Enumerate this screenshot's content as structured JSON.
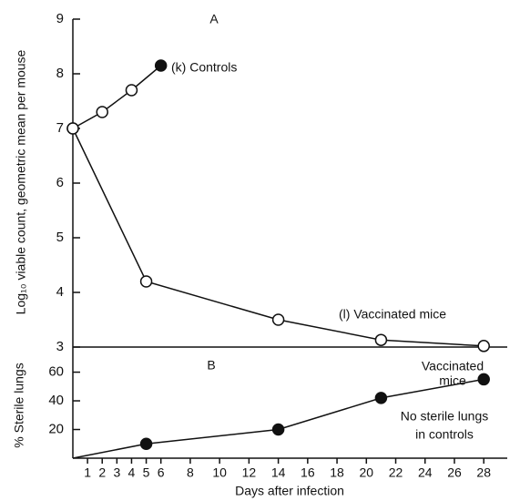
{
  "chart_data": [
    {
      "type": "line",
      "title": "A",
      "ylabel": "Log₁₀ viable count, geometric mean per mouse",
      "xlim": [
        0,
        29.6
      ],
      "ylim": [
        3,
        9
      ],
      "yticks": [
        3,
        4,
        5,
        6,
        7,
        8,
        9
      ],
      "color": "#111111",
      "series": [
        {
          "name": "(k) Controls",
          "x": [
            0,
            2,
            4,
            6
          ],
          "values": [
            7.0,
            7.3,
            7.7,
            8.15
          ],
          "markers": [
            "open",
            "open",
            "open",
            "filled"
          ]
        },
        {
          "name": "(l) Vaccinated mice",
          "x": [
            0,
            5,
            14,
            21,
            28
          ],
          "values": [
            7.0,
            4.2,
            3.5,
            3.13,
            3.02
          ],
          "markers": [
            "open",
            "open",
            "open",
            "open",
            "open"
          ]
        }
      ]
    },
    {
      "type": "line",
      "title": "B",
      "ylabel": "% Sterile lungs",
      "xlabel": "Days after infection",
      "xlim": [
        0,
        29.6
      ],
      "xticks": [
        1,
        2,
        3,
        4,
        5,
        6,
        8,
        10,
        12,
        14,
        16,
        18,
        20,
        22,
        24,
        26,
        28
      ],
      "ylim": [
        0,
        77.5
      ],
      "yticks": [
        20,
        40,
        60
      ],
      "color": "#111111",
      "series": [
        {
          "x": [
            0,
            5,
            14,
            21,
            28
          ],
          "values": [
            0,
            10,
            20,
            42,
            55
          ],
          "markers": [
            "none",
            "filled",
            "filled",
            "filled",
            "filled"
          ]
        }
      ],
      "annotations": [
        [
          "Vaccinated",
          "mice"
        ],
        [
          "No sterile lungs",
          "in controls"
        ]
      ]
    }
  ]
}
